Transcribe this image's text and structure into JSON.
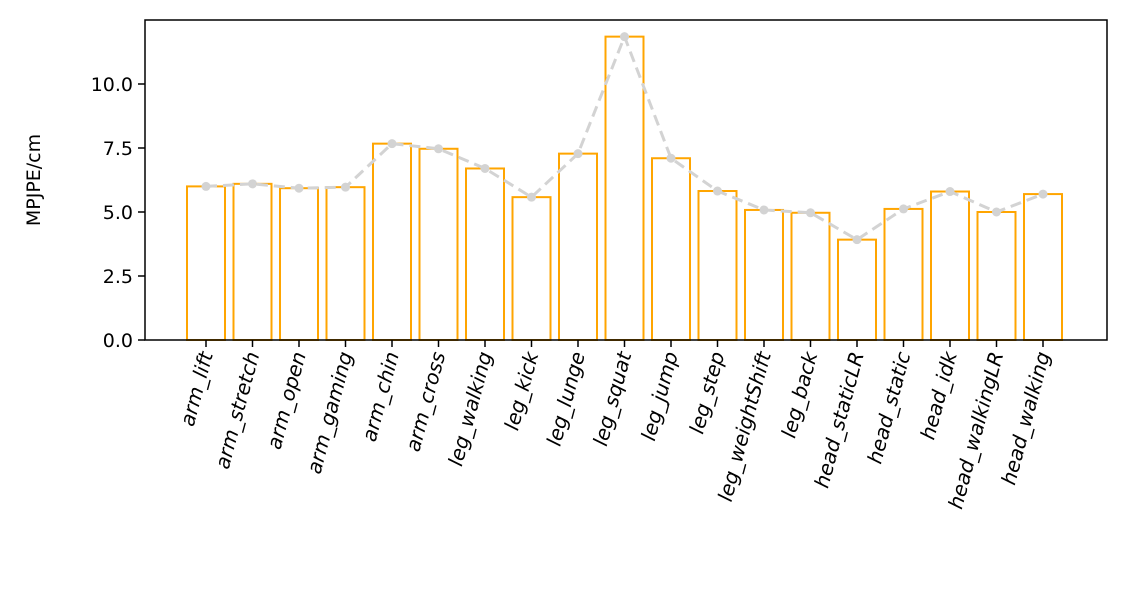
{
  "chart_data": {
    "type": "bar",
    "title": "",
    "xlabel": "",
    "ylabel": "MPJPE/cm",
    "ylim": [
      0,
      12.5
    ],
    "yticks": [
      0.0,
      2.5,
      5.0,
      7.5,
      10.0
    ],
    "ytick_labels": [
      "0.0",
      "2.5",
      "5.0",
      "7.5",
      "10.0"
    ],
    "grid": false,
    "categories": [
      "arm_lift",
      "arm_stretch",
      "arm_open",
      "arm_gaming",
      "arm_chin",
      "arm_cross",
      "leg_walking",
      "leg_kick",
      "leg_lunge",
      "leg_squat",
      "leg_jump",
      "leg_step",
      "leg_weightShift",
      "leg_back",
      "head_staticLR",
      "head_static",
      "head_idk",
      "head_walkingLR",
      "head_walking"
    ],
    "values": [
      6.0,
      6.1,
      5.93,
      5.97,
      7.67,
      7.47,
      6.7,
      5.58,
      7.28,
      11.85,
      7.1,
      5.82,
      5.08,
      4.97,
      3.92,
      5.12,
      5.8,
      5.0,
      5.7
    ],
    "bar_style": "outline",
    "bar_color": "#FFA500",
    "line_overlay": {
      "style": "dashed",
      "marker": "dot",
      "color": "#D3D3D3"
    }
  }
}
